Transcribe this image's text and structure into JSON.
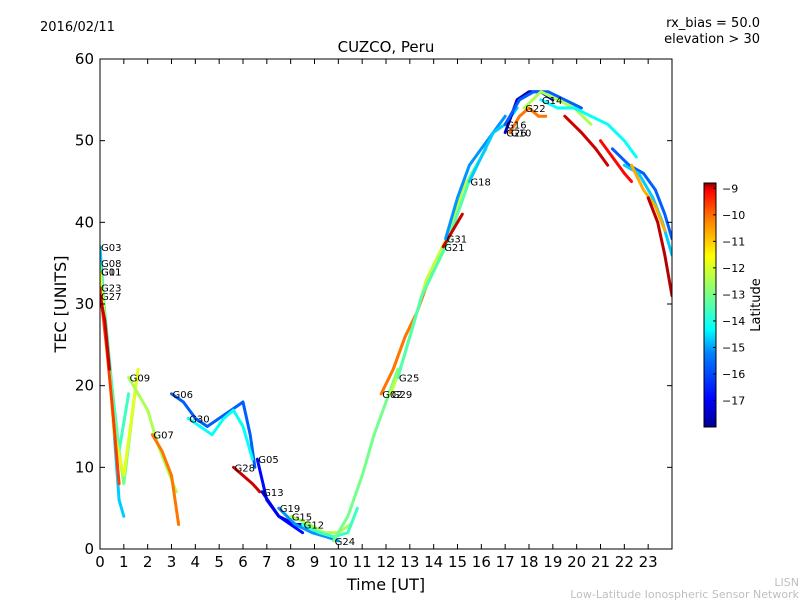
{
  "header": {
    "date": "2016/02/11",
    "rx_bias": "rx_bias = 50.0",
    "elevation": "elevation > 30"
  },
  "footer": {
    "line1": "LISN",
    "line2": "Low-Latitude Ionospheric Sensor Network"
  },
  "colors": {
    "background": "#ffffff",
    "axis": "#000000",
    "footer_text": "#bfbfbf",
    "colormap": [
      "#00008f",
      "#0000ff",
      "#0080ff",
      "#00ffff",
      "#80ff80",
      "#ffff00",
      "#ff8000",
      "#ff0000",
      "#800000"
    ]
  },
  "chart_data": {
    "type": "line",
    "title": "CUZCO, Peru",
    "xlabel": "Time [UT]",
    "ylabel": "TEC [UNITS]",
    "xlim": [
      0,
      24
    ],
    "ylim": [
      0,
      60
    ],
    "xticks": [
      0,
      1,
      2,
      3,
      4,
      5,
      6,
      7,
      8,
      9,
      10,
      11,
      12,
      13,
      14,
      15,
      16,
      17,
      18,
      19,
      20,
      21,
      22,
      23
    ],
    "yticks": [
      0,
      10,
      20,
      30,
      40,
      50,
      60
    ],
    "grid": false,
    "colorbar": {
      "label": "Latitude",
      "range": [
        -18,
        -8.8
      ],
      "ticks": [
        -9,
        -10,
        -11,
        -12,
        -13,
        -14,
        -15,
        -16,
        -17
      ]
    },
    "series": [
      {
        "name": "G03",
        "lat": -15.0,
        "x": [
          0.0,
          0.2,
          0.4,
          0.6,
          0.8,
          1.0
        ],
        "y": [
          37,
          28,
          22,
          14,
          6,
          4
        ]
      },
      {
        "name": "G08",
        "lat": -14.0,
        "x": [
          0.0,
          0.3,
          0.5,
          0.8,
          1.2
        ],
        "y": [
          35,
          26,
          20,
          12,
          19
        ]
      },
      {
        "name": "G01",
        "lat": -13.5,
        "x": [
          0.0,
          0.3,
          0.6,
          1.0,
          1.5
        ],
        "y": [
          34,
          24,
          16,
          8,
          20
        ]
      },
      {
        "name": "G11",
        "lat": -12.5,
        "x": [
          0.0,
          0.3,
          0.6,
          1.0,
          1.6
        ],
        "y": [
          34,
          25,
          14,
          9,
          22
        ]
      },
      {
        "name": "G23",
        "lat": -10.5,
        "x": [
          0.0,
          0.3,
          0.5,
          0.8
        ],
        "y": [
          32,
          24,
          18,
          8
        ]
      },
      {
        "name": "G27",
        "lat": -9.5,
        "x": [
          0.0,
          0.2,
          0.4
        ],
        "y": [
          31,
          28,
          22
        ]
      },
      {
        "name": "G09",
        "lat": -13.0,
        "x": [
          1.2,
          1.6,
          2.0,
          2.4,
          2.8,
          3.2
        ],
        "y": [
          21,
          19,
          17,
          13,
          10,
          7
        ]
      },
      {
        "name": "G07",
        "lat": -11.0,
        "x": [
          2.2,
          2.6,
          3.0,
          3.3
        ],
        "y": [
          14,
          12,
          9,
          3
        ]
      },
      {
        "name": "G06",
        "lat": -16.0,
        "x": [
          3.0,
          3.5,
          4.0,
          4.5,
          5.0,
          5.5,
          6.0,
          6.3,
          6.5
        ],
        "y": [
          19,
          18,
          16,
          15,
          16,
          17,
          18,
          14,
          10
        ]
      },
      {
        "name": "G30",
        "lat": -14.5,
        "x": [
          3.7,
          4.2,
          4.7,
          5.2,
          5.6,
          6.0,
          6.4
        ],
        "y": [
          16,
          15,
          14,
          16,
          17,
          15,
          11
        ]
      },
      {
        "name": "G28",
        "lat": -9.5,
        "x": [
          5.6,
          6.0,
          6.4,
          6.7
        ],
        "y": [
          10,
          9,
          8,
          7
        ]
      },
      {
        "name": "G05",
        "lat": -16.8,
        "x": [
          6.6,
          7.0,
          7.5,
          8.0,
          8.5
        ],
        "y": [
          11,
          6,
          4,
          3,
          2
        ]
      },
      {
        "name": "G13",
        "lat": -17.0,
        "x": [
          6.8,
          7.5,
          8.2,
          8.8
        ],
        "y": [
          7,
          4,
          3,
          3
        ]
      },
      {
        "name": "G19",
        "lat": -15.5,
        "x": [
          7.5,
          8.2,
          8.9,
          9.5,
          10.0
        ],
        "y": [
          5,
          3,
          2,
          1.5,
          1
        ]
      },
      {
        "name": "G15",
        "lat": -13.0,
        "x": [
          8.0,
          8.8,
          9.4,
          10.0,
          10.5
        ],
        "y": [
          4,
          3,
          2,
          2,
          3
        ]
      },
      {
        "name": "G12",
        "lat": -14.0,
        "x": [
          8.5,
          9.2,
          9.8,
          10.4,
          10.8
        ],
        "y": [
          3,
          2,
          1.5,
          2,
          5
        ]
      },
      {
        "name": "G24",
        "lat": -13.5,
        "x": [
          9.8,
          10.4,
          11.0,
          11.5,
          12.0,
          12.5
        ],
        "y": [
          1,
          4,
          9,
          14,
          18,
          22
        ]
      },
      {
        "name": "G02",
        "lat": -11.0,
        "x": [
          11.8,
          12.3,
          12.8,
          13.3,
          13.8,
          14.3,
          14.8
        ],
        "y": [
          19,
          22,
          26,
          29,
          33,
          36,
          40
        ]
      },
      {
        "name": "G29",
        "lat": -12.8,
        "x": [
          12.2,
          12.7,
          13.2,
          13.7,
          14.2,
          14.7,
          15.2,
          15.6
        ],
        "y": [
          19,
          23,
          28,
          33,
          36,
          39,
          44,
          46
        ]
      },
      {
        "name": "G25",
        "lat": -13.8,
        "x": [
          12.5,
          13.0,
          13.5,
          14.0,
          14.5,
          15.0,
          15.6,
          16.2
        ],
        "y": [
          21,
          26,
          31,
          34,
          37,
          41,
          46,
          49
        ]
      },
      {
        "name": "G21",
        "lat": -9.5,
        "x": [
          14.4,
          14.8,
          15.2
        ],
        "y": [
          37,
          39,
          41
        ]
      },
      {
        "name": "G31",
        "lat": -15.5,
        "x": [
          14.5,
          15.0,
          15.5,
          16.0,
          16.5,
          17.0
        ],
        "y": [
          38,
          43,
          47,
          49,
          51,
          53
        ]
      },
      {
        "name": "G18",
        "lat": -15.0,
        "x": [
          15.5,
          16.0,
          16.5,
          17.0,
          17.5
        ],
        "y": [
          45,
          48,
          51,
          52,
          54
        ]
      },
      {
        "name": "G10",
        "lat": -11.0,
        "x": [
          17.2,
          17.6,
          18.0,
          18.4,
          18.7
        ],
        "y": [
          51,
          53,
          54,
          53,
          53
        ]
      },
      {
        "name": "G26",
        "lat": -17.5,
        "x": [
          17.0,
          17.5,
          18.0,
          18.5,
          19.0
        ],
        "y": [
          51,
          55,
          56,
          56,
          55
        ]
      },
      {
        "name": "G16",
        "lat": -16.0,
        "x": [
          17.0,
          17.6,
          18.2,
          18.8,
          19.5,
          20.2
        ],
        "y": [
          52,
          55,
          56,
          56,
          55,
          54
        ]
      },
      {
        "name": "G22",
        "lat": -13.0,
        "x": [
          17.8,
          18.5,
          19.2,
          19.9,
          20.6
        ],
        "y": [
          54,
          56,
          55,
          54,
          52
        ]
      },
      {
        "name": "G14",
        "lat": -14.5,
        "x": [
          18.5,
          19.2,
          19.9,
          20.6,
          21.3,
          22.0,
          22.5
        ],
        "y": [
          55,
          54,
          54,
          53,
          52,
          50,
          48
        ]
      },
      {
        "name": "",
        "lat": -9.5,
        "x": [
          19.5,
          20.2,
          20.8,
          21.3
        ],
        "y": [
          53,
          51,
          49,
          47
        ]
      },
      {
        "name": "",
        "lat": -10.0,
        "x": [
          21.0,
          21.5,
          22.0,
          22.3
        ],
        "y": [
          50,
          48,
          46,
          45
        ]
      },
      {
        "name": "",
        "lat": -16.0,
        "x": [
          21.5,
          22.2,
          22.8,
          23.3,
          23.7,
          24.0
        ],
        "y": [
          49,
          47,
          46,
          44,
          41,
          38
        ]
      },
      {
        "name": "",
        "lat": -15.0,
        "x": [
          22.0,
          22.6,
          23.2,
          23.6,
          24.0
        ],
        "y": [
          47,
          46,
          43,
          40,
          36
        ]
      },
      {
        "name": "",
        "lat": -11.5,
        "x": [
          22.3,
          22.8,
          23.3,
          23.7
        ],
        "y": [
          47,
          44,
          42,
          39
        ]
      },
      {
        "name": "",
        "lat": -9.3,
        "x": [
          23.0,
          23.4,
          23.7,
          24.0
        ],
        "y": [
          43,
          40,
          36,
          31
        ]
      }
    ]
  }
}
